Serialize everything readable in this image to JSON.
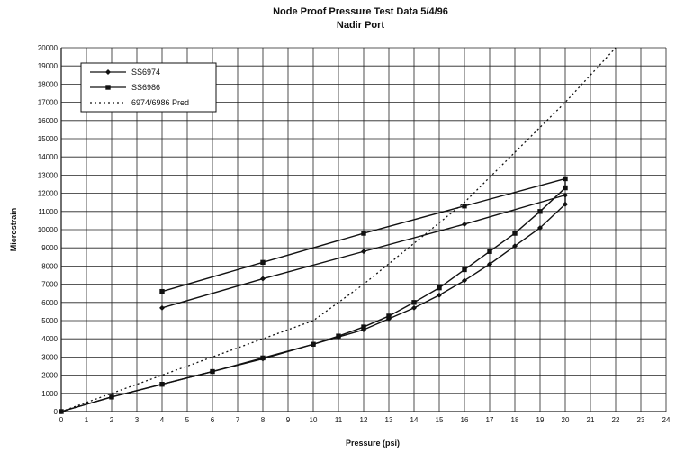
{
  "chart_data": {
    "type": "line",
    "title": "Node Proof Pressure Test Data 5/4/96",
    "subtitle": "Nadir Port",
    "xlabel": "Pressure (psi)",
    "ylabel": "Microstrain",
    "xlim": [
      0,
      24
    ],
    "ylim": [
      0,
      20000
    ],
    "x_ticks": [
      "0",
      "1",
      "2",
      "3",
      "4",
      "5",
      "6",
      "7",
      "8",
      "9",
      "10",
      "11",
      "12",
      "13",
      "14",
      "15",
      "16",
      "17",
      "18",
      "19",
      "20",
      "21",
      "22",
      "23",
      "24"
    ],
    "y_ticks": [
      "0",
      "1000",
      "2000",
      "3000",
      "4000",
      "5000",
      "6000",
      "7000",
      "8000",
      "9000",
      "10000",
      "11000",
      "12000",
      "13000",
      "14000",
      "15000",
      "16000",
      "17000",
      "18000",
      "19000",
      "20000"
    ],
    "grid": true,
    "legend_position": "top-left",
    "series": [
      {
        "name": "SS6974",
        "marker": "diamond",
        "style": "solid",
        "x": [
          0,
          2,
          4,
          6,
          8,
          10,
          11,
          12,
          13,
          14,
          15,
          16,
          17,
          18,
          19,
          20,
          20,
          16,
          12,
          8,
          4
        ],
        "y": [
          0,
          800,
          1500,
          2200,
          2900,
          3700,
          4100,
          4500,
          5100,
          5700,
          6400,
          7200,
          8100,
          9100,
          10100,
          11400,
          11900,
          10300,
          8800,
          7300,
          5700
        ]
      },
      {
        "name": "SS6986",
        "marker": "square",
        "style": "solid",
        "x": [
          0,
          2,
          4,
          6,
          8,
          10,
          11,
          12,
          13,
          14,
          15,
          16,
          17,
          18,
          19,
          20,
          20,
          16,
          12,
          8,
          4
        ],
        "y": [
          0,
          800,
          1500,
          2200,
          2950,
          3700,
          4150,
          4650,
          5250,
          6000,
          6800,
          7800,
          8800,
          9800,
          11000,
          12300,
          12800,
          11300,
          9800,
          8200,
          6600
        ]
      },
      {
        "name": "6974/6986 Pred",
        "marker": "none",
        "style": "dotted",
        "x": [
          0,
          4,
          8,
          10,
          12,
          16,
          20,
          22
        ],
        "y": [
          0,
          2000,
          4000,
          5000,
          7000,
          11500,
          17000,
          20000
        ]
      }
    ]
  }
}
